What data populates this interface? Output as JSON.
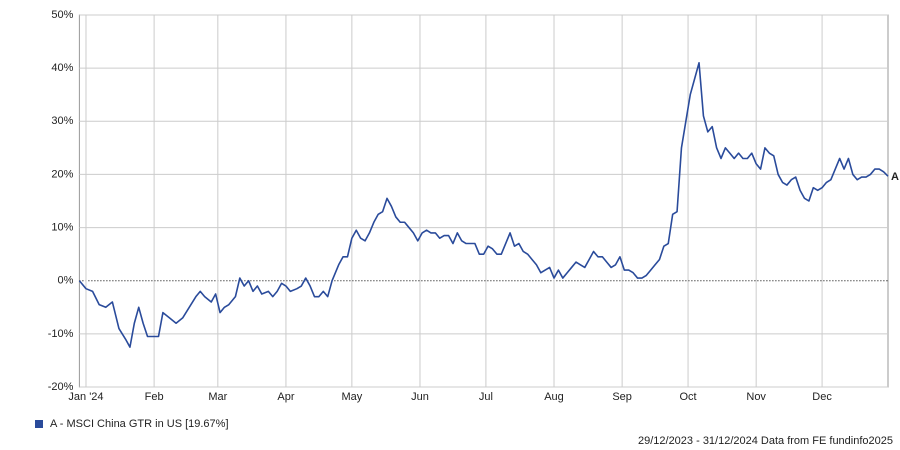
{
  "chart_data": {
    "type": "line",
    "x": [
      0,
      3,
      6,
      9,
      12,
      15,
      18,
      21,
      23,
      25,
      27,
      29,
      31,
      34,
      36,
      38,
      41,
      44,
      47,
      50,
      53,
      55,
      57,
      60,
      62,
      64,
      66,
      68,
      71,
      73,
      75,
      77,
      79,
      81,
      83,
      86,
      88,
      90,
      92,
      94,
      96,
      99,
      101,
      103,
      105,
      107,
      109,
      111,
      113,
      115,
      118,
      120,
      122,
      124,
      126,
      128,
      130,
      132,
      134,
      136,
      138,
      140,
      142,
      144,
      146,
      148,
      150,
      152,
      154,
      156,
      158,
      160,
      162,
      164,
      166,
      168,
      170,
      172,
      174,
      176,
      178,
      180,
      182,
      184,
      186,
      188,
      190,
      192,
      194,
      196,
      198,
      200,
      202,
      204,
      206,
      208,
      210,
      212,
      214,
      216,
      218,
      220,
      222,
      224,
      226,
      228,
      230,
      232,
      234,
      236,
      238,
      240,
      242,
      244,
      246,
      248,
      250,
      252,
      254,
      256,
      258,
      260,
      262,
      264,
      266,
      268,
      270,
      272,
      274,
      276,
      278,
      280,
      282,
      284,
      286,
      288,
      290,
      292,
      294,
      296,
      298,
      300,
      302,
      304,
      306,
      308,
      310,
      312,
      314,
      316,
      318,
      320,
      322,
      324,
      326,
      328,
      330,
      332,
      334,
      336,
      338,
      340,
      342,
      344,
      346,
      348,
      350,
      352,
      354,
      356,
      358,
      360,
      362,
      364,
      366,
      368
    ],
    "series": [
      {
        "name": "A - MSCI China GTR in US [19.67%]",
        "end_label": "A",
        "color": "#2a4b9b",
        "values": [
          0,
          -1.5,
          -2,
          -4.5,
          -5,
          -4,
          -9,
          -11,
          -12.5,
          -8,
          -5,
          -8,
          -10.5,
          -10.5,
          -10.5,
          -6,
          -7,
          -8,
          -7,
          -5,
          -3,
          -2,
          -3,
          -4,
          -2.5,
          -6,
          -5,
          -4.5,
          -3,
          0.5,
          -1,
          0,
          -2,
          -1,
          -2.5,
          -2,
          -3,
          -2,
          -0.5,
          -1,
          -2,
          -1.5,
          -1,
          0.5,
          -1,
          -3,
          -3,
          -2,
          -3,
          0,
          3,
          4.5,
          4.5,
          8,
          9.5,
          8,
          7.5,
          9,
          11,
          12.5,
          13,
          15.5,
          14,
          12,
          11,
          11,
          10,
          9,
          7.5,
          9,
          9.5,
          9,
          9,
          8,
          8.5,
          8.5,
          7,
          9,
          7.5,
          7,
          7,
          7,
          5,
          5,
          6.5,
          6,
          5,
          5,
          7,
          9,
          6.5,
          7,
          5.5,
          5,
          4,
          3,
          1.5,
          2,
          2.5,
          0.5,
          2,
          0.5,
          1.5,
          2.5,
          3.5,
          3,
          2.5,
          4,
          5.5,
          4.5,
          4.5,
          3.5,
          2.5,
          3,
          4.5,
          2,
          2,
          1.5,
          0.5,
          0.5,
          1,
          2,
          3,
          4,
          6.5,
          7,
          12.5,
          13,
          25,
          30,
          35,
          38,
          41,
          31,
          28,
          29,
          25,
          23,
          25,
          24,
          23,
          24,
          23,
          23,
          24,
          22,
          21,
          25,
          24,
          23.5,
          20,
          18.5,
          18,
          19,
          19.5,
          17,
          15.5,
          15,
          17.5,
          17,
          17.5,
          18.5,
          19,
          21,
          23,
          21,
          23,
          20,
          19,
          19.5,
          19.5,
          20,
          21,
          21,
          20.5,
          19.67
        ]
      }
    ],
    "xlim": [
      0,
      368
    ],
    "xticks": [
      {
        "value": 3,
        "label": "Jan '24"
      },
      {
        "value": 34,
        "label": "Feb"
      },
      {
        "value": 63,
        "label": "Mar"
      },
      {
        "value": 94,
        "label": "Apr"
      },
      {
        "value": 124,
        "label": "May"
      },
      {
        "value": 155,
        "label": "Jun"
      },
      {
        "value": 185,
        "label": "Jul"
      },
      {
        "value": 216,
        "label": "Aug"
      },
      {
        "value": 247,
        "label": "Sep"
      },
      {
        "value": 277,
        "label": "Oct"
      },
      {
        "value": 308,
        "label": "Nov"
      },
      {
        "value": 338,
        "label": "Dec"
      }
    ],
    "ylim": [
      -20,
      50
    ],
    "yticks": [
      {
        "value": -20,
        "label": "-20%"
      },
      {
        "value": -10,
        "label": "-10%"
      },
      {
        "value": 0,
        "label": "0%"
      },
      {
        "value": 10,
        "label": "10%"
      },
      {
        "value": 20,
        "label": "20%"
      },
      {
        "value": 30,
        "label": "30%"
      },
      {
        "value": 40,
        "label": "40%"
      },
      {
        "value": 50,
        "label": "50%"
      }
    ],
    "grid": true,
    "footer": "29/12/2023 - 31/12/2024 Data from FE fundinfo2025"
  }
}
